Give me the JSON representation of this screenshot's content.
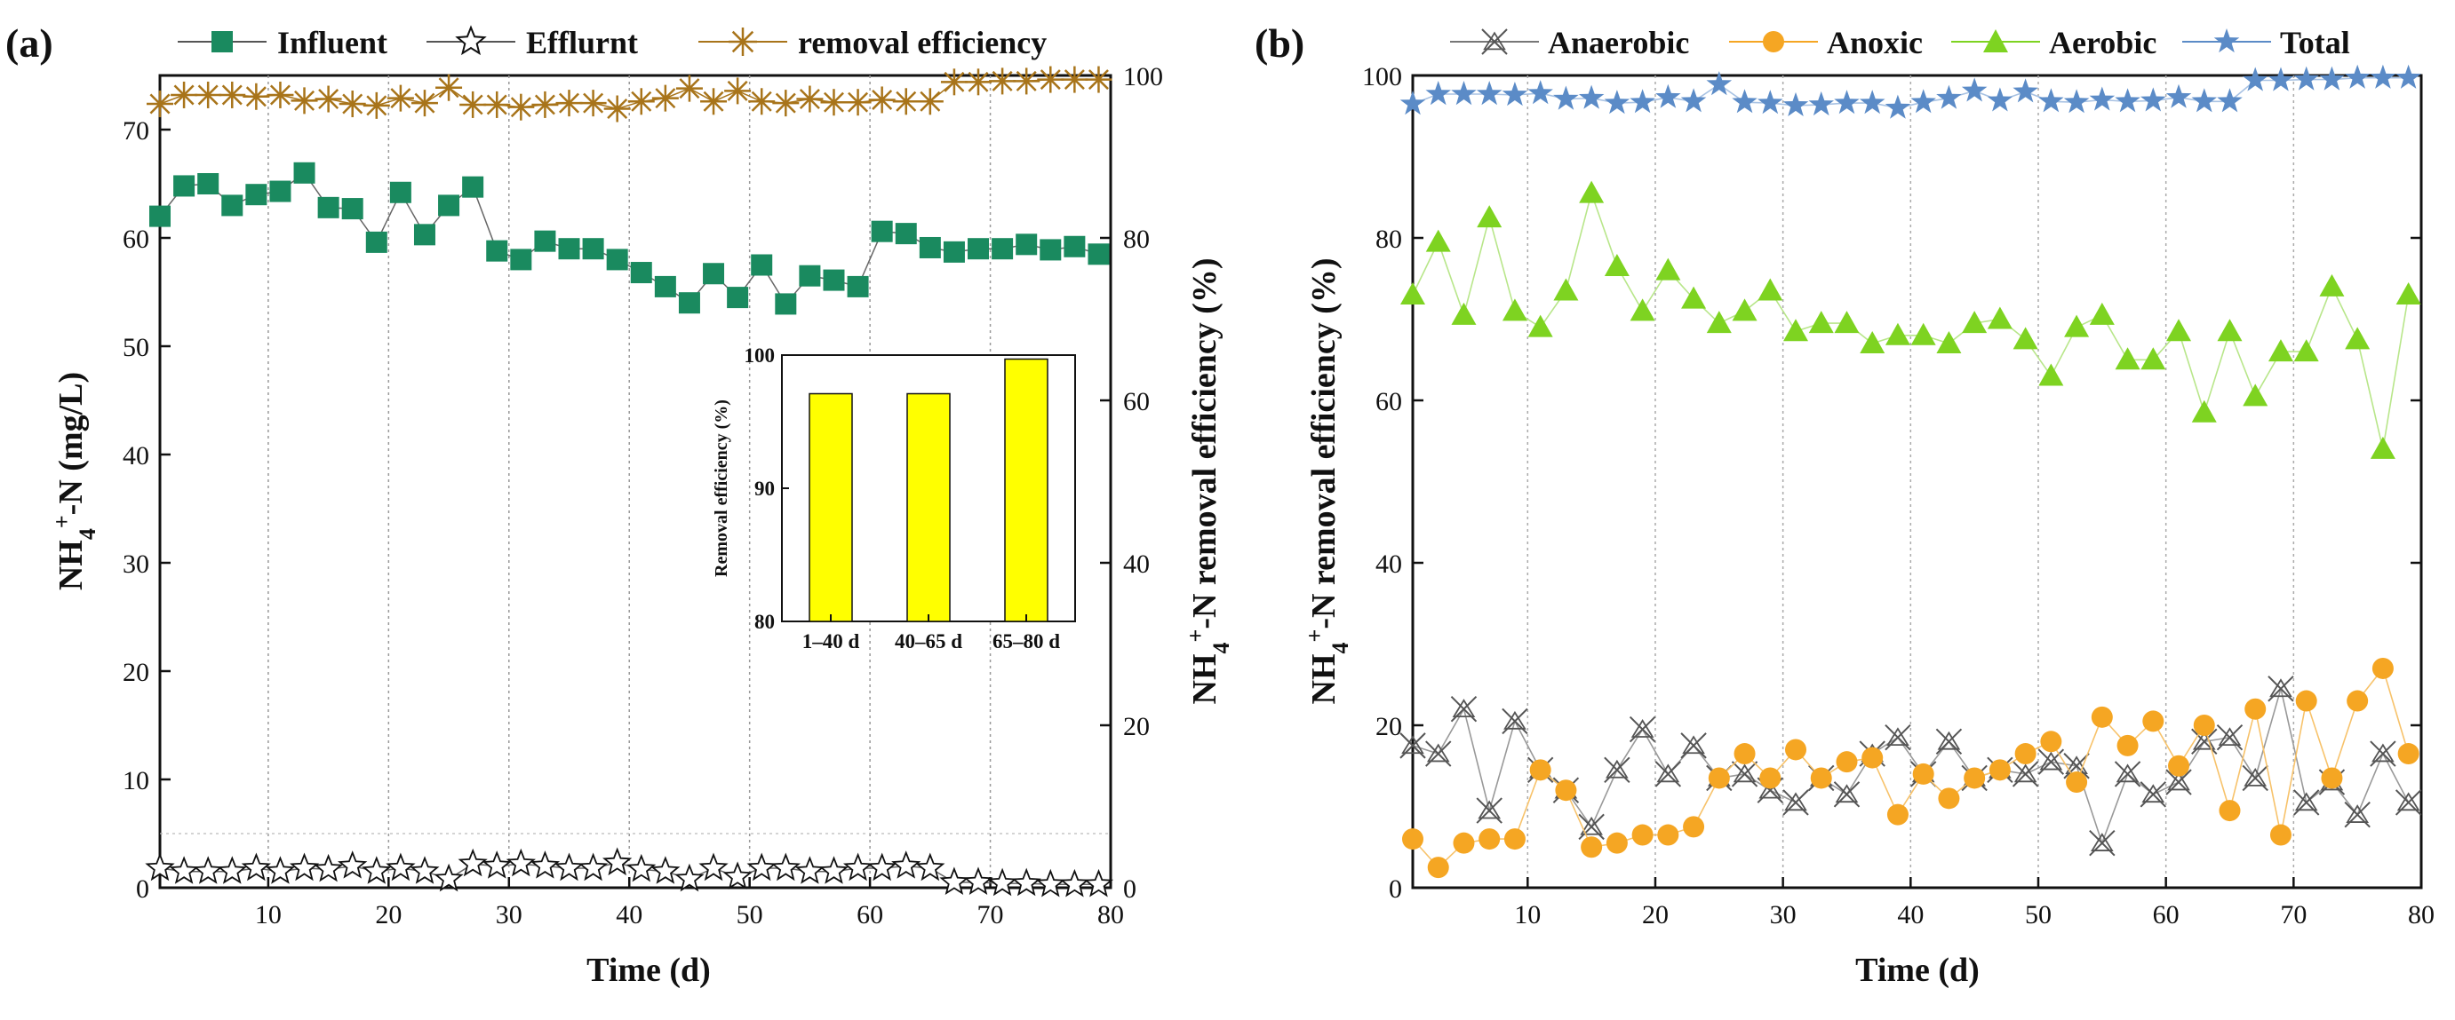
{
  "chart_data": [
    {
      "type": "line",
      "panel_label": "(a)",
      "xlabel": "Time (d)",
      "ylabel_left": "NH4+-N (mg/L)",
      "ylabel_right": "NH4+-N removal efficiency (%)",
      "xlim": [
        1,
        80
      ],
      "ylim_left": [
        0,
        75
      ],
      "ylim_right": [
        0,
        100
      ],
      "xticks": [
        10,
        20,
        30,
        40,
        50,
        60,
        70,
        80
      ],
      "yticks_left": [
        0,
        10,
        20,
        30,
        40,
        50,
        60,
        70
      ],
      "yticks_right": [
        0,
        20,
        40,
        60,
        80,
        100
      ],
      "legend": [
        "Influent",
        "Efflurnt",
        "removal efficiency"
      ],
      "x": [
        1,
        3,
        5,
        7,
        9,
        11,
        13,
        15,
        17,
        19,
        21,
        23,
        25,
        27,
        29,
        31,
        33,
        35,
        37,
        39,
        41,
        43,
        45,
        47,
        49,
        51,
        53,
        55,
        57,
        59,
        61,
        63,
        65,
        67,
        69,
        71,
        73,
        75,
        77,
        79
      ],
      "series": [
        {
          "name": "Influent",
          "axis": "left",
          "color": "#1a8a5f",
          "values": [
            62.0,
            64.8,
            65.0,
            63.0,
            64.0,
            64.3,
            66.0,
            62.8,
            62.7,
            59.6,
            64.2,
            60.3,
            63.0,
            64.7,
            58.8,
            58.0,
            59.7,
            59.0,
            59.0,
            58.0,
            56.8,
            55.5,
            54.0,
            56.7,
            54.5,
            57.5,
            53.9,
            56.5,
            56.1,
            55.5,
            60.6,
            60.4,
            59.1,
            58.7,
            59.0,
            59.0,
            59.4,
            58.9,
            59.2,
            58.5
          ]
        },
        {
          "name": "Efflurnt",
          "axis": "left",
          "color": "#222222",
          "values": [
            1.8,
            1.5,
            1.5,
            1.5,
            1.8,
            1.5,
            1.8,
            1.7,
            2.0,
            1.5,
            1.8,
            1.5,
            0.8,
            2.2,
            2.0,
            2.2,
            2.0,
            1.8,
            1.8,
            2.3,
            1.7,
            1.5,
            0.8,
            1.8,
            1.0,
            1.8,
            1.8,
            1.5,
            1.5,
            1.8,
            1.8,
            2.0,
            1.8,
            0.5,
            0.5,
            0.4,
            0.4,
            0.3,
            0.3,
            0.3
          ]
        },
        {
          "name": "removal efficiency",
          "axis": "right",
          "color": "#a8741a",
          "values": [
            96.5,
            97.6,
            97.6,
            97.6,
            97.4,
            97.6,
            96.9,
            97.1,
            96.5,
            96.3,
            97.2,
            96.6,
            98.5,
            96.4,
            96.4,
            96.1,
            96.4,
            96.6,
            96.6,
            95.9,
            96.8,
            97.2,
            98.4,
            96.8,
            98.1,
            96.8,
            96.6,
            97.1,
            96.7,
            96.7,
            97.0,
            96.8,
            96.8,
            99.2,
            99.2,
            99.3,
            99.3,
            99.5,
            99.5,
            99.5
          ]
        }
      ],
      "inset": {
        "type": "bar",
        "categories": [
          "1–40 d",
          "40–65 d",
          "65–80 d"
        ],
        "values": [
          97.1,
          97.1,
          99.7
        ],
        "ylabel": "Removal efficiency (%)",
        "ylim": [
          80,
          100
        ],
        "yticks": [
          80,
          90,
          100
        ],
        "color": "#ffff00"
      }
    },
    {
      "type": "line",
      "panel_label": "(b)",
      "xlabel": "Time (d)",
      "ylabel": "NH4+-N removal efficiency (%)",
      "xlim": [
        1,
        80
      ],
      "ylim": [
        0,
        100
      ],
      "xticks": [
        10,
        20,
        30,
        40,
        50,
        60,
        70,
        80
      ],
      "yticks": [
        0,
        20,
        40,
        60,
        80,
        100
      ],
      "legend": [
        "Anaerobic",
        "Anoxic",
        "Aerobic",
        "Total"
      ],
      "x": [
        1,
        3,
        5,
        7,
        9,
        11,
        13,
        15,
        17,
        19,
        21,
        23,
        25,
        27,
        29,
        31,
        33,
        35,
        37,
        39,
        41,
        43,
        45,
        47,
        49,
        51,
        53,
        55,
        57,
        59,
        61,
        63,
        65,
        67,
        69,
        71,
        73,
        75,
        77,
        79
      ],
      "series": [
        {
          "name": "Anaerobic",
          "color": "#555555",
          "values": [
            17.5,
            16.5,
            22.0,
            9.5,
            20.5,
            14.5,
            12.0,
            7.5,
            14.5,
            19.5,
            14.0,
            17.5,
            13.5,
            14.0,
            12.0,
            10.5,
            13.5,
            11.5,
            16.5,
            18.5,
            14.0,
            18.0,
            13.5,
            14.5,
            14.0,
            15.5,
            15.0,
            5.5,
            14.0,
            11.5,
            13.0,
            18.0,
            18.5,
            13.5,
            24.5,
            10.5,
            13.0,
            9.0,
            16.5,
            10.5
          ]
        },
        {
          "name": "Anoxic",
          "color": "#f5a623",
          "values": [
            6.0,
            2.5,
            5.5,
            6.0,
            6.0,
            14.5,
            12.0,
            5.0,
            5.5,
            6.5,
            6.5,
            7.5,
            13.5,
            16.5,
            13.5,
            17.0,
            13.5,
            15.5,
            16.0,
            9.0,
            14.0,
            11.0,
            13.5,
            14.5,
            16.5,
            18.0,
            13.0,
            21.0,
            17.5,
            20.5,
            15.0,
            20.0,
            9.5,
            22.0,
            6.5,
            23.0,
            13.5,
            23.0,
            27.0,
            16.5
          ]
        },
        {
          "name": "Aerobic",
          "color": "#7ed321",
          "values": [
            73.0,
            79.5,
            70.5,
            82.5,
            71.0,
            69.0,
            73.5,
            85.5,
            76.5,
            71.0,
            76.0,
            72.5,
            69.5,
            71.0,
            73.5,
            68.5,
            69.5,
            69.5,
            67.0,
            68.0,
            68.0,
            67.0,
            69.5,
            70.0,
            67.5,
            63.0,
            69.0,
            70.5,
            65.0,
            65.0,
            68.5,
            58.5,
            68.5,
            60.5,
            66.0,
            66.0,
            74.0,
            67.5,
            54.0,
            73.0
          ]
        },
        {
          "name": "Total",
          "color": "#5b8bc7",
          "values": [
            96.5,
            97.7,
            97.7,
            97.7,
            97.6,
            97.8,
            97.1,
            97.2,
            96.6,
            96.7,
            97.3,
            96.8,
            98.9,
            96.7,
            96.6,
            96.3,
            96.4,
            96.6,
            96.6,
            96.0,
            96.7,
            97.2,
            98.1,
            96.9,
            98.0,
            96.8,
            96.7,
            97.0,
            96.8,
            96.9,
            97.3,
            96.8,
            96.8,
            99.4,
            99.4,
            99.5,
            99.5,
            99.7,
            99.7,
            99.7
          ]
        }
      ]
    }
  ]
}
